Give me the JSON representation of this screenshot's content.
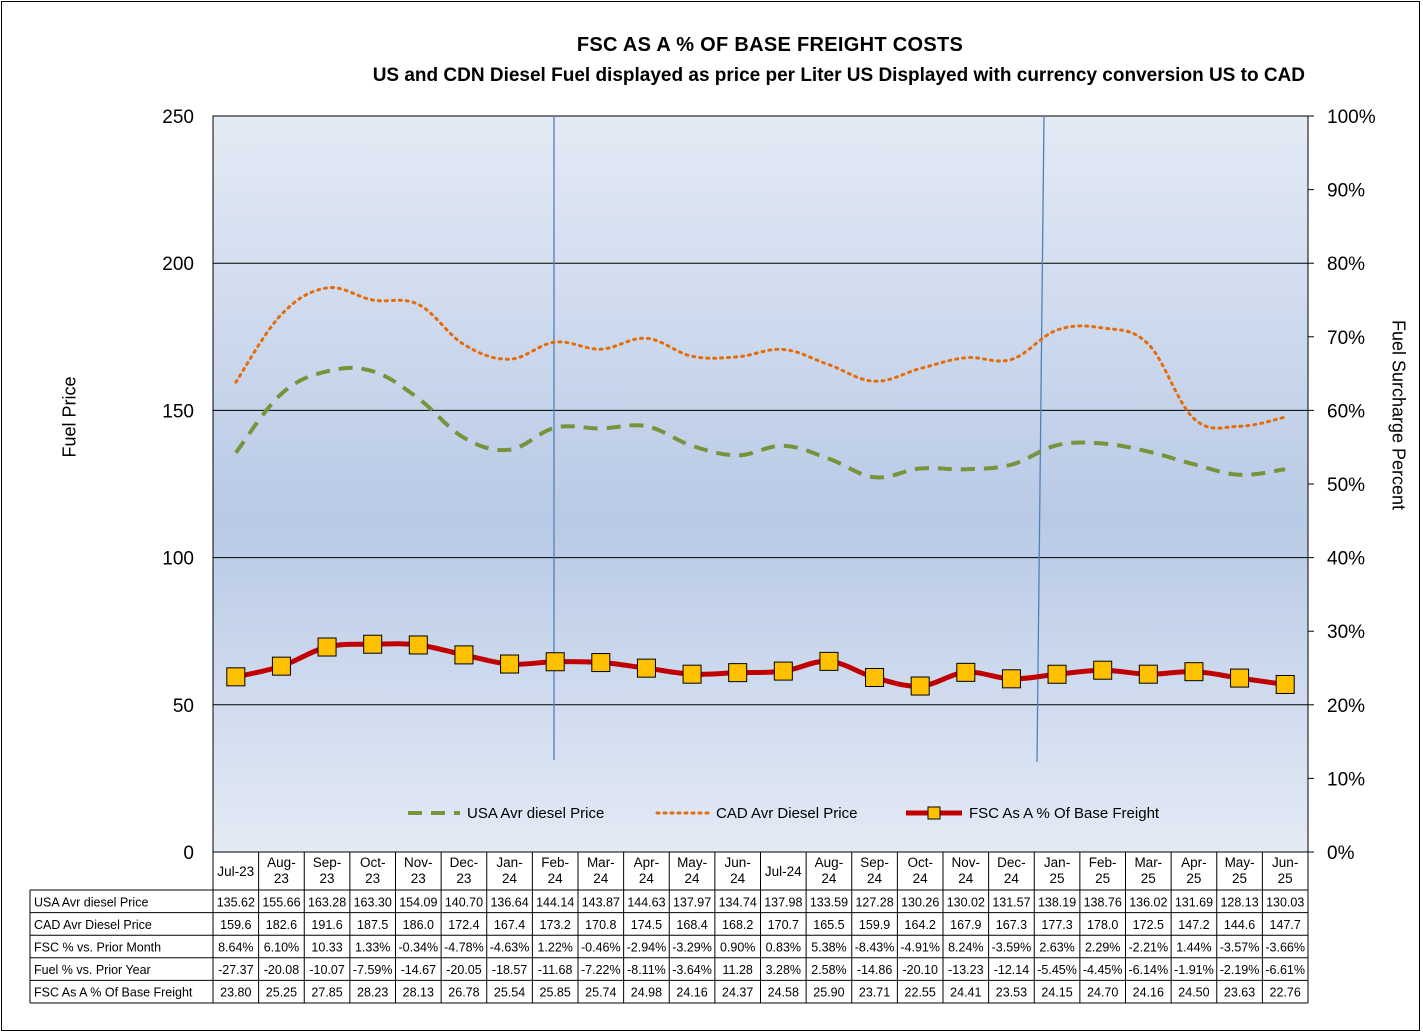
{
  "title": "FSC AS A % OF BASE FREIGHT COSTS",
  "subtitle": "US and CDN Diesel Fuel displayed as price per Liter US Displayed with currency conversion US to CAD",
  "chart_data": {
    "type": "line",
    "title": "FSC AS A % OF BASE FREIGHT COSTS",
    "subtitle": "US and CDN Diesel Fuel displayed as price per Liter US Displayed with currency conversion US to CAD",
    "ylabel": "Fuel Price",
    "y2label": "Fuel Surcharge Percent",
    "ylim": [
      0,
      250
    ],
    "y2lim": [
      0,
      100
    ],
    "yticks": [
      "0",
      "50",
      "100",
      "150",
      "200",
      "250"
    ],
    "y2ticks": [
      "0%",
      "10%",
      "20%",
      "30%",
      "40%",
      "50%",
      "60%",
      "70%",
      "80%",
      "90%",
      "100%"
    ],
    "grid": true,
    "legend_position": "bottom",
    "categories": [
      "Jul-23",
      "Aug-\n23",
      "Sep-\n23",
      "Oct-\n23",
      "Nov-\n23",
      "Dec-\n23",
      "Jan-\n24",
      "Feb-\n24",
      "Mar-\n24",
      "Apr-\n24",
      "May-\n24",
      "Jun-\n24",
      "Jul-24",
      "Aug-\n24",
      "Sep-\n24",
      "Oct-\n24",
      "Nov-\n24",
      "Dec-\n24",
      "Jan-\n25",
      "Feb-\n25",
      "Mar-\n25",
      "Apr-\n25",
      "May-\n25",
      "Jun-\n25"
    ],
    "series": [
      {
        "name": "USA Avr diesel Price",
        "axis": "left",
        "style": "dashed",
        "color": "#77933c",
        "values": [
          135.62,
          155.66,
          163.28,
          163.3,
          154.09,
          140.7,
          136.64,
          144.14,
          143.87,
          144.63,
          137.97,
          134.74,
          137.98,
          133.59,
          127.28,
          130.26,
          130.02,
          131.57,
          138.19,
          138.76,
          136.02,
          131.69,
          128.13,
          130.03
        ],
        "labels": [
          "135.62",
          "155.66",
          "163.28",
          "163.30",
          "154.09",
          "140.70",
          "136.64",
          "144.14",
          "143.87",
          "144.63",
          "137.97",
          "134.74",
          "137.98",
          "133.59",
          "127.28",
          "130.26",
          "130.02",
          "131.57",
          "138.19",
          "138.76",
          "136.02",
          "131.69",
          "128.13",
          "130.03"
        ]
      },
      {
        "name": "CAD Avr Diesel Price",
        "axis": "left",
        "style": "dotted",
        "color": "#e46c0a",
        "values": [
          159.6,
          182.6,
          191.6,
          187.5,
          186.0,
          172.4,
          167.4,
          173.2,
          170.8,
          174.5,
          168.4,
          168.2,
          170.7,
          165.5,
          159.9,
          164.2,
          167.9,
          167.3,
          177.3,
          178.0,
          172.5,
          147.2,
          144.6,
          147.7
        ],
        "labels": [
          "159.6",
          "182.6",
          "191.6",
          "187.5",
          "186.0",
          "172.4",
          "167.4",
          "173.2",
          "170.8",
          "174.5",
          "168.4",
          "168.2",
          "170.7",
          "165.5",
          "159.9",
          "164.2",
          "167.9",
          "167.3",
          "177.3",
          "178.0",
          "172.5",
          "147.2",
          "144.6",
          "147.7"
        ]
      },
      {
        "name": "FSC As A % Of Base Freight",
        "axis": "right",
        "style": "solid-markers",
        "color": "#c00000",
        "marker_color": "#ffc000",
        "values": [
          23.8,
          25.25,
          27.85,
          28.23,
          28.13,
          26.78,
          25.54,
          25.85,
          25.74,
          24.98,
          24.16,
          24.37,
          24.58,
          25.9,
          23.71,
          22.55,
          24.41,
          23.53,
          24.15,
          24.7,
          24.16,
          24.5,
          23.63,
          22.76
        ],
        "labels": [
          "23.80",
          "25.25",
          "27.85",
          "28.23",
          "28.13",
          "26.78",
          "25.54",
          "25.85",
          "25.74",
          "24.98",
          "24.16",
          "24.37",
          "24.58",
          "25.90",
          "23.71",
          "22.55",
          "24.41",
          "23.53",
          "24.15",
          "24.70",
          "24.16",
          "24.50",
          "23.63",
          "22.76"
        ]
      }
    ],
    "table_rows": [
      {
        "name": "USA Avr diesel Price",
        "labels": [
          "135.62",
          "155.66",
          "163.28",
          "163.30",
          "154.09",
          "140.70",
          "136.64",
          "144.14",
          "143.87",
          "144.63",
          "137.97",
          "134.74",
          "137.98",
          "133.59",
          "127.28",
          "130.26",
          "130.02",
          "131.57",
          "138.19",
          "138.76",
          "136.02",
          "131.69",
          "128.13",
          "130.03"
        ]
      },
      {
        "name": "CAD Avr Diesel Price",
        "labels": [
          "159.6",
          "182.6",
          "191.6",
          "187.5",
          "186.0",
          "172.4",
          "167.4",
          "173.2",
          "170.8",
          "174.5",
          "168.4",
          "168.2",
          "170.7",
          "165.5",
          "159.9",
          "164.2",
          "167.9",
          "167.3",
          "177.3",
          "178.0",
          "172.5",
          "147.2",
          "144.6",
          "147.7"
        ]
      },
      {
        "name": "FSC % vs. Prior Month",
        "labels": [
          "8.64%",
          "6.10%",
          "10.33",
          "1.33%",
          "-0.34%",
          "-4.78%",
          "-4.63%",
          "1.22%",
          "-0.46%",
          "-2.94%",
          "-3.29%",
          "0.90%",
          "0.83%",
          "5.38%",
          "-8.43%",
          "-4.91%",
          "8.24%",
          "-3.59%",
          "2.63%",
          "2.29%",
          "-2.21%",
          "1.44%",
          "-3.57%",
          "-3.66%"
        ]
      },
      {
        "name": "Fuel % vs. Prior Year",
        "labels": [
          "-27.37",
          "-20.08",
          "-10.07",
          "-7.59%",
          "-14.67",
          "-20.05",
          "-18.57",
          "-11.68",
          "-7.22%",
          "-8.11%",
          "-3.64%",
          "11.28",
          "3.28%",
          "2.58%",
          "-14.86",
          "-20.10",
          "-13.23",
          "-12.14",
          "-5.45%",
          "-4.45%",
          "-6.14%",
          "-1.91%",
          "-2.19%",
          "-6.61%"
        ]
      },
      {
        "name": "FSC As A % Of Base Freight",
        "labels": [
          "23.80",
          "25.25",
          "27.85",
          "28.23",
          "28.13",
          "26.78",
          "25.54",
          "25.85",
          "25.74",
          "24.98",
          "24.16",
          "24.37",
          "24.58",
          "25.90",
          "23.71",
          "22.55",
          "24.41",
          "23.53",
          "24.15",
          "24.70",
          "24.16",
          "24.50",
          "23.63",
          "22.76"
        ]
      }
    ]
  }
}
